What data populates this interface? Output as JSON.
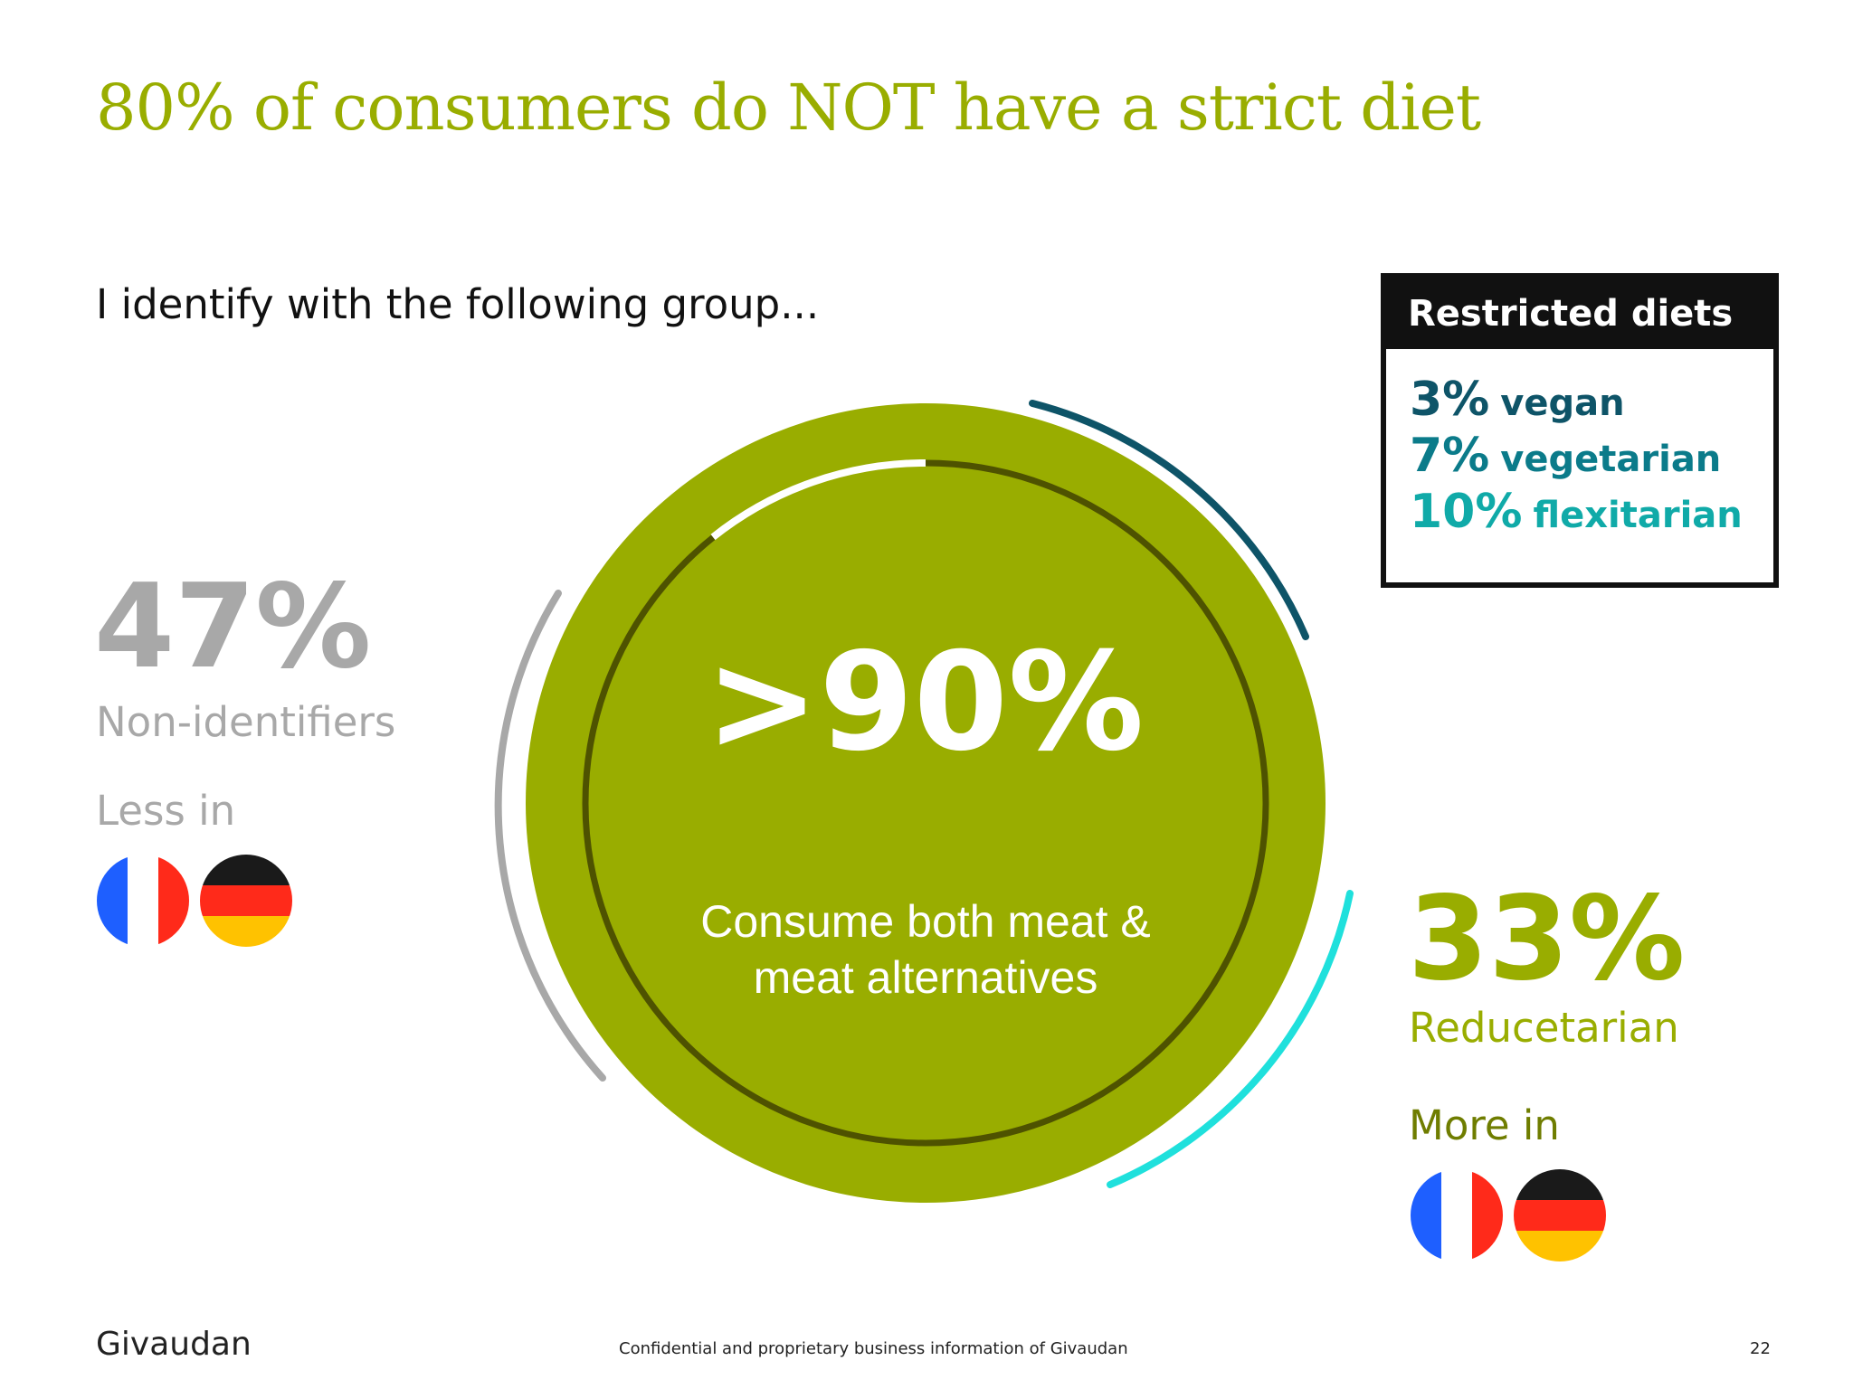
{
  "title": "80% of consumers do NOT have a strict diet",
  "question": "I identify with the following group...",
  "center": {
    "value": ">90%",
    "label_line1": "Consume both meat &",
    "label_line2": "meat alternatives"
  },
  "non_identifiers": {
    "value": "47%",
    "label": "Non-identifiers",
    "note": "Less in",
    "flags": [
      "france-flag-icon",
      "germany-flag-icon"
    ]
  },
  "reducetarian": {
    "value": "33%",
    "label": "Reducetarian",
    "note": "More in",
    "flags": [
      "france-flag-icon",
      "germany-flag-icon"
    ]
  },
  "restricted_diets": {
    "header": "Restricted diets",
    "items": [
      {
        "pct": "3%",
        "label": "vegan",
        "color": "#0e5468"
      },
      {
        "pct": "7%",
        "label": "vegetarian",
        "color": "#0b7b8a"
      },
      {
        "pct": "10%",
        "label": "flexitarian",
        "color": "#10aaa8"
      }
    ]
  },
  "colors": {
    "accent_green": "#99ad00",
    "grey": "#a8a8a8",
    "dark_teal": "#0e5468",
    "cyan": "#1fe0dc"
  },
  "footer": {
    "logo": "Givaudan",
    "confidential": "Confidential and proprietary business information of Givaudan",
    "page": "22"
  }
}
